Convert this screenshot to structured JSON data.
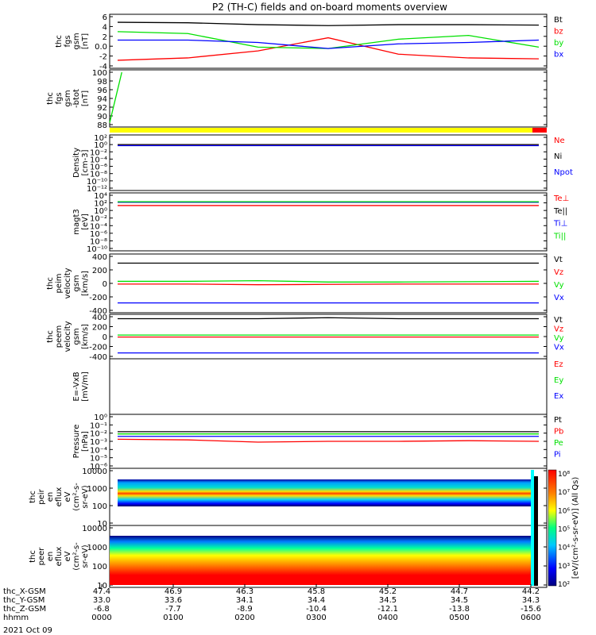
{
  "title": "P2 (TH-C) fields and on-board moments overview",
  "colors": {
    "black": "#000000",
    "red": "#ff0000",
    "green": "#00e000",
    "blue": "#0000ff",
    "yellow": "#ffff00"
  },
  "panels": [
    {
      "id": "fgs",
      "ylabel": [
        "thc",
        "fgs",
        "gsm",
        "[nT]"
      ],
      "ticks": [
        "6",
        "4",
        "2",
        "0.0",
        "-2",
        "-4"
      ],
      "legend": [
        {
          "text": "Bt",
          "color": "black"
        },
        {
          "text": "bz",
          "color": "red"
        },
        {
          "text": "by",
          "color": "green"
        },
        {
          "text": "bx",
          "color": "blue"
        }
      ]
    },
    {
      "id": "fgs-btotal",
      "ylabel": [
        "thc",
        "fgs",
        "gsm",
        "-btot",
        "[nT]"
      ],
      "ticks": [
        "100",
        "98",
        "96",
        "94",
        "92",
        "90",
        "88"
      ],
      "legend": []
    },
    {
      "id": "density",
      "ylabel": [
        "Density",
        "[cm-3]"
      ],
      "ticks": [
        "10²",
        "10⁰",
        "10⁻²",
        "10⁻⁴",
        "10⁻⁶",
        "10⁻⁸",
        "10⁻¹⁰",
        "10⁻¹²"
      ],
      "legend": [
        {
          "text": "Ne",
          "color": "red"
        },
        {
          "text": "Ni",
          "color": "black"
        },
        {
          "text": "Npot",
          "color": "blue"
        }
      ]
    },
    {
      "id": "temperature",
      "ylabel": [
        "magt3",
        "[eV]"
      ],
      "ticks": [
        "10⁴",
        "10²",
        "10⁰",
        "10⁻²",
        "10⁻⁴",
        "10⁻⁶",
        "10⁻⁸",
        "10⁻¹⁰"
      ],
      "legend": [
        {
          "text": "Te⊥",
          "color": "red"
        },
        {
          "text": "Te||",
          "color": "black"
        },
        {
          "text": "Ti⊥",
          "color": "blue"
        },
        {
          "text": "Ti||",
          "color": "green"
        }
      ]
    },
    {
      "id": "peim-velocity",
      "ylabel": [
        "thc",
        "peim",
        "velocity",
        "gsm",
        "[km/s]"
      ],
      "ticks": [
        "400",
        "200",
        "0",
        "-200",
        "-400"
      ],
      "legend": [
        {
          "text": "Vt",
          "color": "black"
        },
        {
          "text": "Vz",
          "color": "red"
        },
        {
          "text": "Vy",
          "color": "green"
        },
        {
          "text": "Vx",
          "color": "blue"
        }
      ]
    },
    {
      "id": "peem-velocity",
      "ylabel": [
        "thc",
        "peem",
        "velocity",
        "gsm",
        "[km/s]"
      ],
      "ticks": [
        "400",
        "200",
        "0",
        "-200",
        "-400"
      ],
      "legend": [
        {
          "text": "Vt",
          "color": "black"
        },
        {
          "text": "Vz",
          "color": "red"
        },
        {
          "text": "Vy",
          "color": "green"
        },
        {
          "text": "Vx",
          "color": "blue"
        }
      ]
    },
    {
      "id": "e-field",
      "ylabel": [
        "E=-VxB",
        "[mV/m]"
      ],
      "ticks": [],
      "legend": [
        {
          "text": "Ez",
          "color": "red"
        },
        {
          "text": "Ey",
          "color": "green"
        },
        {
          "text": "Ex",
          "color": "blue"
        }
      ]
    },
    {
      "id": "pressure",
      "ylabel": [
        "Pressure",
        "[nPa]"
      ],
      "ticks": [
        "10⁰",
        "10⁻¹",
        "10⁻²",
        "10⁻³",
        "10⁻⁴",
        "10⁻⁵",
        "10⁻⁶"
      ],
      "legend": [
        {
          "text": "Pt",
          "color": "black"
        },
        {
          "text": "Pb",
          "color": "red"
        },
        {
          "text": "Pe",
          "color": "green"
        },
        {
          "text": "Pi",
          "color": "blue"
        }
      ]
    },
    {
      "id": "peir-spectrogram",
      "ylabel": [
        "thc",
        "peir",
        "en",
        "eflux",
        "eV",
        "(cm²-s-",
        "sr-eV)"
      ],
      "ticks": [
        "10000",
        "1000",
        "100",
        "10"
      ],
      "legend": []
    },
    {
      "id": "peer-spectrogram",
      "ylabel": [
        "thc",
        "peer",
        "en",
        "eflux",
        "eV",
        "(cm²-s-",
        "sr-eV)"
      ],
      "ticks": [
        "10000",
        "1000",
        "100",
        "10"
      ],
      "legend": []
    }
  ],
  "colorbar": {
    "label": "[eV/(cm²-s-sr-eV)] (All Qs)",
    "ticks": [
      "10⁸",
      "10⁷",
      "10⁶",
      "10⁵",
      "10⁴",
      "10³",
      "10²"
    ]
  },
  "x_axis": {
    "rows": [
      {
        "label": "thc_X-GSM",
        "values": [
          "47.4",
          "46.9",
          "46.3",
          "45.8",
          "45.2",
          "44.7",
          "44.2"
        ]
      },
      {
        "label": "thc_Y-GSM",
        "values": [
          "33.0",
          "33.6",
          "34.1",
          "34.4",
          "34.5",
          "34.5",
          "34.3"
        ]
      },
      {
        "label": "thc_Z-GSM",
        "values": [
          "-6.8",
          "-7.7",
          "-8.9",
          "-10.4",
          "-12.1",
          "-13.8",
          "-15.6"
        ]
      },
      {
        "label": "hhmm",
        "values": [
          "0000",
          "0100",
          "0200",
          "0300",
          "0400",
          "0500",
          "0600"
        ]
      }
    ],
    "date": "2021 Oct 09"
  },
  "chart_data": {
    "type": "line",
    "title": "P2 (TH-C) fields and on-board moments overview",
    "x": [
      "0000",
      "0100",
      "0200",
      "0300",
      "0400",
      "0500",
      "0600"
    ],
    "xlabel": "hhmm",
    "panels": [
      {
        "id": "fgs",
        "ylim": [
          -4.5,
          6
        ],
        "series": [
          {
            "name": "Bt",
            "color": "black",
            "values": [
              4.8,
              4.7,
              4.3,
              4.1,
              4.3,
              4.3,
              4.2
            ]
          },
          {
            "name": "bz",
            "color": "red",
            "values": [
              -3.3,
              -2.8,
              -1.3,
              1.5,
              -2.0,
              -2.8,
              -3.0
            ]
          },
          {
            "name": "by",
            "color": "green",
            "values": [
              2.8,
              2.4,
              -0.5,
              -0.8,
              1.2,
              2.0,
              -0.5
            ]
          },
          {
            "name": "bx",
            "color": "blue",
            "values": [
              1.0,
              1.0,
              0.5,
              -0.8,
              0.2,
              0.5,
              1.0
            ]
          }
        ]
      },
      {
        "id": "fgs-btotal",
        "ylim": [
          86,
          100
        ],
        "series": [
          {
            "name": "",
            "color": "green",
            "x": [
              "0000",
              "0010"
            ],
            "values": [
              86.5,
              100
            ]
          }
        ]
      },
      {
        "id": "density",
        "scale": "log",
        "ylim": [
          1e-12,
          100
        ],
        "series": [
          {
            "name": "Ne",
            "color": "red",
            "values": [
              1,
              1,
              1,
              1,
              1,
              1,
              1
            ]
          },
          {
            "name": "Ni",
            "color": "black",
            "values": [
              1,
              1,
              1,
              1,
              1,
              1,
              1
            ]
          },
          {
            "name": "Npot",
            "color": "blue",
            "values": [
              0.5,
              0.5,
              0.5,
              0.5,
              0.5,
              0.5,
              0.5
            ]
          }
        ]
      },
      {
        "id": "temperature",
        "scale": "log",
        "ylim": [
          1e-10,
          10000
        ],
        "series": [
          {
            "name": "Te⊥",
            "color": "red",
            "values": [
              20,
              20,
              20,
              20,
              20,
              20,
              20
            ]
          },
          {
            "name": "Te||",
            "color": "black",
            "values": [
              150,
              150,
              150,
              150,
              150,
              150,
              150
            ]
          },
          {
            "name": "Ti⊥",
            "color": "blue",
            "values": [
              150,
              150,
              150,
              150,
              150,
              150,
              150
            ]
          },
          {
            "name": "Ti||",
            "color": "green",
            "values": [
              200,
              200,
              200,
              200,
              200,
              200,
              200
            ]
          }
        ]
      },
      {
        "id": "peim-velocity",
        "ylim": [
          -400,
          400
        ],
        "series": [
          {
            "name": "Vt",
            "color": "black",
            "values": [
              300,
              300,
              300,
              300,
              300,
              300,
              300
            ]
          },
          {
            "name": "Vz",
            "color": "red",
            "values": [
              -10,
              -10,
              -20,
              -15,
              -10,
              -10,
              -10
            ]
          },
          {
            "name": "Vy",
            "color": "green",
            "values": [
              30,
              30,
              40,
              20,
              20,
              25,
              30
            ]
          },
          {
            "name": "Vx",
            "color": "blue",
            "values": [
              -290,
              -290,
              -290,
              -290,
              -290,
              -290,
              -290
            ]
          }
        ]
      },
      {
        "id": "peem-velocity",
        "ylim": [
          -400,
          400
        ],
        "series": [
          {
            "name": "Vt",
            "color": "black",
            "values": [
              360,
              360,
              360,
              380,
              360,
              360,
              360
            ]
          },
          {
            "name": "Vz",
            "color": "red",
            "values": [
              -10,
              -10,
              -10,
              -10,
              -10,
              -10,
              -10
            ]
          },
          {
            "name": "Vy",
            "color": "green",
            "values": [
              30,
              30,
              30,
              30,
              30,
              30,
              30
            ]
          },
          {
            "name": "Vx",
            "color": "blue",
            "values": [
              -330,
              -330,
              -330,
              -330,
              -330,
              -330,
              -330
            ]
          }
        ]
      },
      {
        "id": "pressure",
        "scale": "log",
        "ylim": [
          1e-06,
          1
        ],
        "series": [
          {
            "name": "Pt",
            "color": "black",
            "values": [
              0.015,
              0.015,
              0.015,
              0.015,
              0.015,
              0.015,
              0.015
            ]
          },
          {
            "name": "Pb",
            "color": "red",
            "values": [
              0.0018,
              0.0015,
              0.0008,
              0.001,
              0.001,
              0.0012,
              0.001
            ]
          },
          {
            "name": "Pe",
            "color": "green",
            "values": [
              0.008,
              0.008,
              0.008,
              0.008,
              0.008,
              0.008,
              0.008
            ]
          },
          {
            "name": "Pi",
            "color": "blue",
            "values": [
              0.004,
              0.004,
              0.004,
              0.004,
              0.004,
              0.004,
              0.004
            ]
          }
        ]
      }
    ]
  }
}
